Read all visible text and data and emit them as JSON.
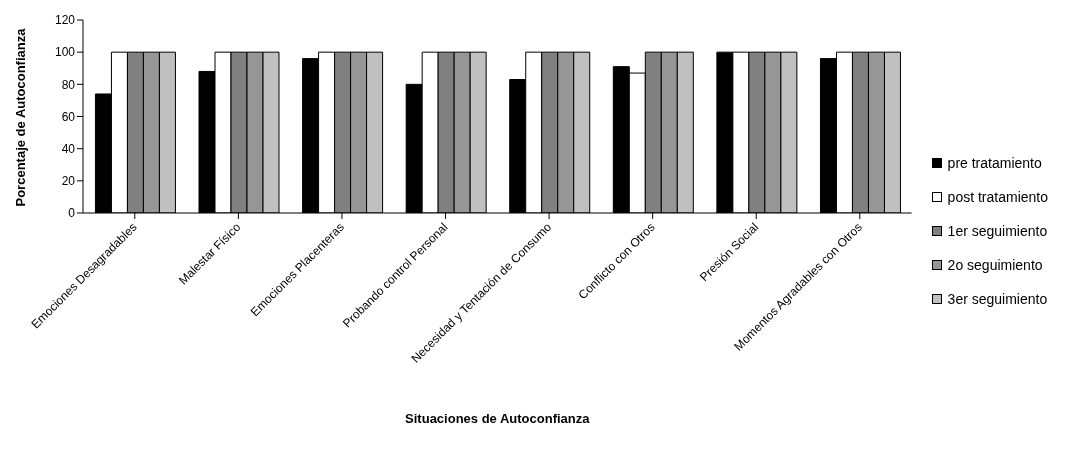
{
  "chart_data": {
    "type": "bar",
    "xlabel": "Situaciones de Autoconfianza",
    "ylabel": "Porcentaje de Autoconfianza",
    "categories": [
      "Emociones Desagradables",
      "Malestar Físico",
      "Emociones Placenteras",
      "Probando control Personal",
      "Necesidad y Tentación de Consumo",
      "Conflicto con Otros",
      "Presión Social",
      "Momentos Agradables con Otros"
    ],
    "series": [
      {
        "name": "pre tratamiento",
        "color": "#000000",
        "values": [
          74,
          88,
          96,
          80,
          83,
          91,
          100,
          96
        ]
      },
      {
        "name": "post tratamiento",
        "color": "#ffffff",
        "values": [
          100,
          100,
          100,
          100,
          100,
          87,
          100,
          100
        ]
      },
      {
        "name": "1er seguimiento",
        "color": "#808080",
        "values": [
          100,
          100,
          100,
          100,
          100,
          100,
          100,
          100
        ]
      },
      {
        "name": "2o seguimiento",
        "color": "#969696",
        "values": [
          100,
          100,
          100,
          100,
          100,
          100,
          100,
          100
        ]
      },
      {
        "name": "3er seguimiento",
        "color": "#c0c0c0",
        "values": [
          100,
          100,
          100,
          100,
          100,
          100,
          100,
          100
        ]
      }
    ],
    "ylim": [
      0,
      120
    ],
    "yticks": [
      0,
      20,
      40,
      60,
      80,
      100,
      120
    ],
    "grid": false,
    "legend": "right"
  }
}
